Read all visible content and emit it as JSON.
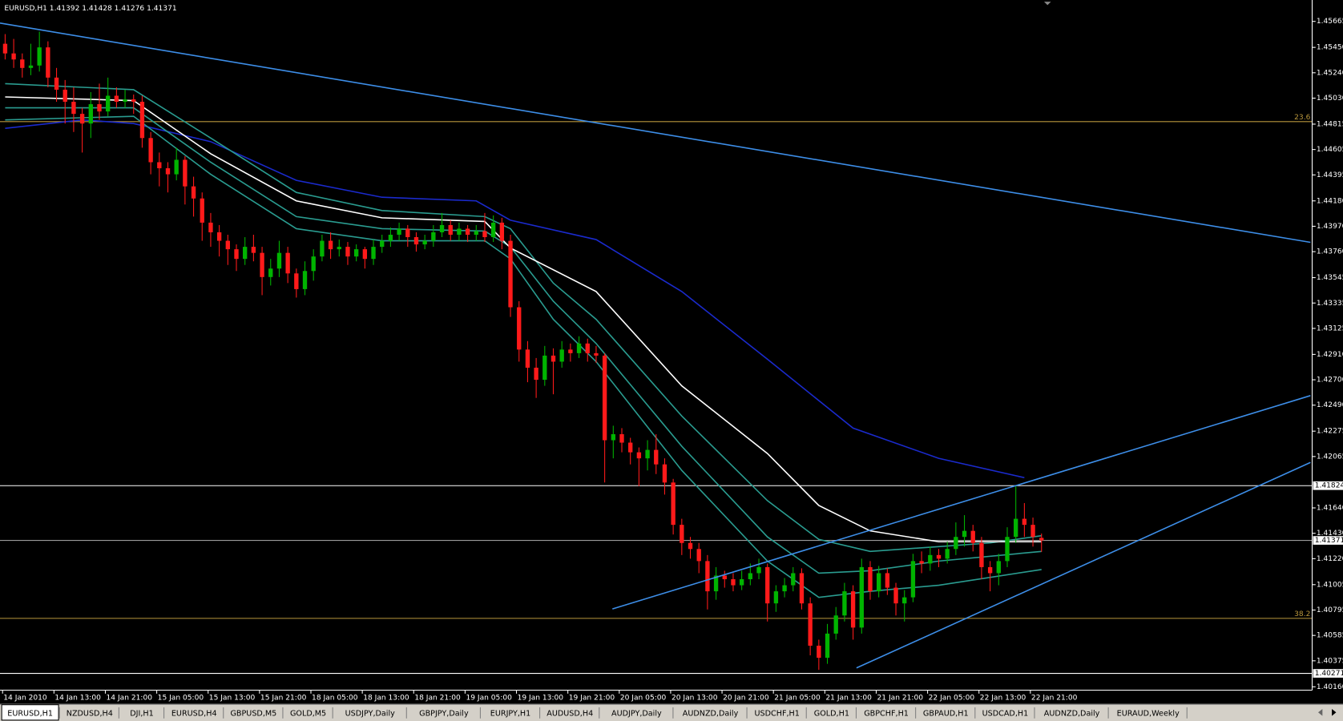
{
  "header": "EURUSD,H1  1.41392 1.41428 1.41276 1.41371",
  "chart_data": {
    "type": "candlestick",
    "categories": [
      "14 Jan 2010",
      null,
      null,
      null,
      null,
      null,
      "14 Jan 13:00",
      null,
      null,
      null,
      null,
      null,
      "14 Jan 21:00",
      null,
      null,
      null,
      null,
      null,
      "15 Jan 05:00",
      null,
      null,
      null,
      null,
      null,
      "15 Jan 13:00",
      null,
      null,
      null,
      null,
      null,
      "15 Jan 21:00",
      null,
      null,
      null,
      null,
      null,
      "18 Jan 05:00",
      null,
      null,
      null,
      null,
      null,
      "18 Jan 13:00",
      null,
      null,
      null,
      null,
      null,
      "18 Jan 21:00",
      null,
      null,
      null,
      null,
      null,
      "19 Jan 05:00",
      null,
      null,
      null,
      null,
      null,
      "19 Jan 13:00",
      null,
      null,
      null,
      null,
      null,
      "19 Jan 21:00",
      null,
      null,
      null,
      null,
      null,
      "20 Jan 05:00",
      null,
      null,
      null,
      null,
      null,
      "20 Jan 13:00",
      null,
      null,
      null,
      null,
      null,
      "20 Jan 21:00",
      null,
      null,
      null,
      null,
      null,
      "21 Jan 05:00",
      null,
      null,
      null,
      null,
      null,
      "21 Jan 13:00",
      null,
      null,
      null,
      null,
      null,
      "21 Jan 21:00",
      null,
      null,
      null,
      null,
      null,
      "22 Jan 05:00",
      null,
      null,
      null,
      null,
      null,
      "22 Jan 13:00",
      null,
      null,
      null,
      null,
      null,
      "22 Jan 21:00",
      null
    ],
    "candles": [
      [
        1.4548,
        1.4556,
        1.4535,
        1.454
      ],
      [
        1.454,
        1.4552,
        1.4528,
        1.4535
      ],
      [
        1.4535,
        1.454,
        1.452,
        1.4528
      ],
      [
        1.4528,
        1.4548,
        1.4522,
        1.453
      ],
      [
        1.453,
        1.4558,
        1.4525,
        1.4545
      ],
      [
        1.4545,
        1.455,
        1.4512,
        1.452
      ],
      [
        1.452,
        1.4528,
        1.45,
        1.451
      ],
      [
        1.451,
        1.4518,
        1.4482,
        1.45
      ],
      [
        1.45,
        1.4512,
        1.4475,
        1.449
      ],
      [
        1.449,
        1.4495,
        1.4458,
        1.4482
      ],
      [
        1.4482,
        1.4508,
        1.447,
        1.4498
      ],
      [
        1.4498,
        1.4515,
        1.4485,
        1.4492
      ],
      [
        1.4492,
        1.452,
        1.4488,
        1.4505
      ],
      [
        1.4505,
        1.4512,
        1.4495,
        1.45
      ],
      [
        1.45,
        1.451,
        1.4495,
        1.4502
      ],
      [
        1.4502,
        1.4506,
        1.449,
        1.45
      ],
      [
        1.45,
        1.4505,
        1.4462,
        1.447
      ],
      [
        1.447,
        1.4475,
        1.444,
        1.445
      ],
      [
        1.445,
        1.4458,
        1.443,
        1.4445
      ],
      [
        1.4445,
        1.445,
        1.4425,
        1.444
      ],
      [
        1.444,
        1.4462,
        1.4435,
        1.4452
      ],
      [
        1.4452,
        1.4455,
        1.4415,
        1.443
      ],
      [
        1.443,
        1.4438,
        1.4405,
        1.442
      ],
      [
        1.442,
        1.4425,
        1.4385,
        1.44
      ],
      [
        1.44,
        1.4408,
        1.438,
        1.4392
      ],
      [
        1.4392,
        1.4398,
        1.4372,
        1.4385
      ],
      [
        1.4385,
        1.439,
        1.4365,
        1.4378
      ],
      [
        1.4378,
        1.4382,
        1.436,
        1.437
      ],
      [
        1.437,
        1.4388,
        1.4365,
        1.438
      ],
      [
        1.438,
        1.439,
        1.4368,
        1.4375
      ],
      [
        1.4375,
        1.438,
        1.434,
        1.4355
      ],
      [
        1.4355,
        1.437,
        1.4348,
        1.4362
      ],
      [
        1.4362,
        1.4385,
        1.4355,
        1.4375
      ],
      [
        1.4375,
        1.438,
        1.435,
        1.4358
      ],
      [
        1.4358,
        1.4362,
        1.4338,
        1.4345
      ],
      [
        1.4345,
        1.4368,
        1.434,
        1.436
      ],
      [
        1.436,
        1.4378,
        1.4352,
        1.4372
      ],
      [
        1.4372,
        1.439,
        1.4368,
        1.4385
      ],
      [
        1.4385,
        1.4392,
        1.437,
        1.4378
      ],
      [
        1.4378,
        1.4386,
        1.4372,
        1.438
      ],
      [
        1.438,
        1.4384,
        1.4365,
        1.4372
      ],
      [
        1.4372,
        1.4382,
        1.4368,
        1.4378
      ],
      [
        1.4378,
        1.438,
        1.4362,
        1.437
      ],
      [
        1.437,
        1.4386,
        1.4365,
        1.438
      ],
      [
        1.438,
        1.439,
        1.4375,
        1.4385
      ],
      [
        1.4385,
        1.4396,
        1.438,
        1.439
      ],
      [
        1.439,
        1.44,
        1.4385,
        1.4395
      ],
      [
        1.4395,
        1.4398,
        1.438,
        1.4388
      ],
      [
        1.4388,
        1.4392,
        1.4376,
        1.4382
      ],
      [
        1.4382,
        1.439,
        1.4378,
        1.4385
      ],
      [
        1.4385,
        1.4398,
        1.438,
        1.4392
      ],
      [
        1.4392,
        1.4408,
        1.4388,
        1.4398
      ],
      [
        1.4398,
        1.4402,
        1.4385,
        1.439
      ],
      [
        1.439,
        1.44,
        1.4385,
        1.4395
      ],
      [
        1.4395,
        1.4398,
        1.4384,
        1.439
      ],
      [
        1.439,
        1.4398,
        1.4385,
        1.4393
      ],
      [
        1.4393,
        1.4408,
        1.4384,
        1.4388
      ],
      [
        1.4388,
        1.4406,
        1.4384,
        1.44
      ],
      [
        1.44,
        1.4404,
        1.4378,
        1.4385
      ],
      [
        1.4385,
        1.439,
        1.4322,
        1.433
      ],
      [
        1.433,
        1.4335,
        1.4285,
        1.4295
      ],
      [
        1.4295,
        1.4302,
        1.4268,
        1.428
      ],
      [
        1.428,
        1.4288,
        1.4255,
        1.427
      ],
      [
        1.427,
        1.4298,
        1.4265,
        1.429
      ],
      [
        1.429,
        1.4296,
        1.4258,
        1.4285
      ],
      [
        1.4285,
        1.4302,
        1.428,
        1.4295
      ],
      [
        1.4295,
        1.43,
        1.4285,
        1.4292
      ],
      [
        1.4292,
        1.4306,
        1.4288,
        1.43
      ],
      [
        1.43,
        1.4304,
        1.4285,
        1.4292
      ],
      [
        1.4292,
        1.4298,
        1.4284,
        1.429
      ],
      [
        1.429,
        1.4292,
        1.4185,
        1.422
      ],
      [
        1.422,
        1.4232,
        1.4205,
        1.4225
      ],
      [
        1.4225,
        1.423,
        1.421,
        1.4218
      ],
      [
        1.4218,
        1.4222,
        1.42,
        1.421
      ],
      [
        1.421,
        1.4214,
        1.4182,
        1.4205
      ],
      [
        1.4205,
        1.422,
        1.4195,
        1.4212
      ],
      [
        1.4212,
        1.4225,
        1.4192,
        1.42
      ],
      [
        1.42,
        1.4205,
        1.4175,
        1.4185
      ],
      [
        1.4185,
        1.4188,
        1.4142,
        1.415
      ],
      [
        1.415,
        1.4155,
        1.4125,
        1.4135
      ],
      [
        1.4135,
        1.414,
        1.4122,
        1.413
      ],
      [
        1.413,
        1.4135,
        1.411,
        1.412
      ],
      [
        1.412,
        1.4125,
        1.408,
        1.4095
      ],
      [
        1.4095,
        1.4115,
        1.4088,
        1.4108
      ],
      [
        1.4108,
        1.4112,
        1.4098,
        1.4105
      ],
      [
        1.4105,
        1.411,
        1.4095,
        1.41
      ],
      [
        1.41,
        1.4112,
        1.4096,
        1.4105
      ],
      [
        1.4105,
        1.4118,
        1.41,
        1.411
      ],
      [
        1.411,
        1.4122,
        1.4105,
        1.4115
      ],
      [
        1.4115,
        1.4118,
        1.407,
        1.4085
      ],
      [
        1.4085,
        1.41,
        1.4078,
        1.4095
      ],
      [
        1.4095,
        1.4106,
        1.409,
        1.41
      ],
      [
        1.41,
        1.4115,
        1.4095,
        1.411
      ],
      [
        1.411,
        1.4114,
        1.408,
        1.4085
      ],
      [
        1.4085,
        1.409,
        1.4042,
        1.405
      ],
      [
        1.405,
        1.4055,
        1.403,
        1.404
      ],
      [
        1.404,
        1.4068,
        1.4035,
        1.406
      ],
      [
        1.406,
        1.4082,
        1.4055,
        1.4075
      ],
      [
        1.4075,
        1.4102,
        1.407,
        1.4095
      ],
      [
        1.4095,
        1.41,
        1.4055,
        1.4065
      ],
      [
        1.4065,
        1.4122,
        1.406,
        1.4115
      ],
      [
        1.4115,
        1.412,
        1.4088,
        1.4095
      ],
      [
        1.4095,
        1.4116,
        1.409,
        1.411
      ],
      [
        1.411,
        1.4114,
        1.4092,
        1.4098
      ],
      [
        1.4098,
        1.4102,
        1.4075,
        1.4085
      ],
      [
        1.4085,
        1.4096,
        1.407,
        1.409
      ],
      [
        1.409,
        1.4126,
        1.4086,
        1.412
      ],
      [
        1.412,
        1.4128,
        1.411,
        1.4118
      ],
      [
        1.4118,
        1.4132,
        1.4112,
        1.4125
      ],
      [
        1.4125,
        1.413,
        1.4115,
        1.4122
      ],
      [
        1.4122,
        1.4136,
        1.4118,
        1.413
      ],
      [
        1.413,
        1.4152,
        1.4125,
        1.414
      ],
      [
        1.414,
        1.4158,
        1.4132,
        1.4145
      ],
      [
        1.4145,
        1.415,
        1.4128,
        1.4135
      ],
      [
        1.4135,
        1.414,
        1.4105,
        1.4115
      ],
      [
        1.4115,
        1.412,
        1.4095,
        1.411
      ],
      [
        1.411,
        1.4126,
        1.41,
        1.412
      ],
      [
        1.412,
        1.4148,
        1.4115,
        1.414
      ],
      [
        1.414,
        1.4182,
        1.4135,
        1.4155
      ],
      [
        1.4155,
        1.4168,
        1.414,
        1.415
      ],
      [
        1.415,
        1.4156,
        1.4132,
        1.414
      ],
      [
        1.41392,
        1.41428,
        1.41276,
        1.41371
      ]
    ],
    "up_color": "#00b400",
    "down_color": "#ff1a1a",
    "ylim": [
      1.40132,
      1.45842
    ],
    "yticks": [
      1.45665,
      {
        "value": 1.4545,
        "label": "1.45450"
      },
      {
        "value": 1.4524,
        "label": "1.45240"
      },
      {
        "value": 1.4503,
        "label": "1.45030"
      },
      1.44815,
      1.44605,
      1.44395,
      {
        "value": 1.4418,
        "label": "1.44180"
      },
      {
        "value": 1.4397,
        "label": "1.43970"
      },
      {
        "value": 1.4376,
        "label": "1.43760"
      },
      1.43545,
      1.43335,
      1.43125,
      {
        "value": 1.4291,
        "label": "1.42910"
      },
      {
        "value": 1.427,
        "label": "1.42700"
      },
      {
        "value": 1.4249,
        "label": "1.42490"
      },
      1.42275,
      1.42065,
      {
        "value": 1.4164,
        "label": "1.41640"
      },
      {
        "value": 1.4143,
        "label": "1.41430"
      },
      {
        "value": 1.4122,
        "label": "1.41220"
      },
      1.41005,
      1.40795,
      1.40585,
      1.40375,
      {
        "value": 1.4016,
        "label": "1.40160"
      }
    ],
    "overlays": [
      {
        "color": "#1a2acc",
        "points": [
          [
            0,
            1.4478
          ],
          [
            9,
            1.4485
          ],
          [
            15,
            1.4482
          ],
          [
            24,
            1.4467
          ],
          [
            34,
            1.4435
          ],
          [
            44,
            1.4421
          ],
          [
            55,
            1.4418
          ],
          [
            59,
            1.4402
          ],
          [
            69,
            1.4386
          ],
          [
            79,
            1.4343
          ],
          [
            89,
            1.4287
          ],
          [
            99,
            1.423
          ],
          [
            109,
            1.4205
          ],
          [
            119,
            1.4189
          ]
        ]
      },
      {
        "color": "#2a9c90",
        "points": [
          [
            0,
            1.4515
          ],
          [
            15,
            1.451
          ],
          [
            24,
            1.447
          ],
          [
            34,
            1.4425
          ],
          [
            44,
            1.441
          ],
          [
            56,
            1.4405
          ],
          [
            59,
            1.4395
          ],
          [
            64,
            1.435
          ],
          [
            69,
            1.432
          ],
          [
            79,
            1.424
          ],
          [
            89,
            1.417
          ],
          [
            95,
            1.4138
          ],
          [
            101,
            1.4128
          ],
          [
            109,
            1.4132
          ],
          [
            115,
            1.4135
          ],
          [
            121,
            1.4141
          ]
        ]
      },
      {
        "color": "#2a9c90",
        "points": [
          [
            0,
            1.4495
          ],
          [
            15,
            1.4495
          ],
          [
            24,
            1.445
          ],
          [
            34,
            1.4405
          ],
          [
            44,
            1.4395
          ],
          [
            56,
            1.4393
          ],
          [
            59,
            1.438
          ],
          [
            64,
            1.4335
          ],
          [
            69,
            1.43
          ],
          [
            79,
            1.4215
          ],
          [
            89,
            1.414
          ],
          [
            95,
            1.411
          ],
          [
            101,
            1.4112
          ],
          [
            109,
            1.412
          ],
          [
            121,
            1.4128
          ]
        ]
      },
      {
        "color": "#2a9c90",
        "points": [
          [
            0,
            1.4485
          ],
          [
            15,
            1.4488
          ],
          [
            24,
            1.444
          ],
          [
            34,
            1.4395
          ],
          [
            44,
            1.4385
          ],
          [
            56,
            1.4385
          ],
          [
            59,
            1.437
          ],
          [
            64,
            1.432
          ],
          [
            69,
            1.4285
          ],
          [
            79,
            1.4195
          ],
          [
            89,
            1.412
          ],
          [
            95,
            1.409
          ],
          [
            101,
            1.4095
          ],
          [
            109,
            1.41
          ],
          [
            121,
            1.4113
          ]
        ]
      },
      {
        "color": "#ffffff",
        "points": [
          [
            0,
            1.4504
          ],
          [
            15,
            1.4501
          ],
          [
            24,
            1.4457
          ],
          [
            34,
            1.4418
          ],
          [
            44,
            1.4404
          ],
          [
            56,
            1.4401
          ],
          [
            59,
            1.4379
          ],
          [
            69,
            1.4343
          ],
          [
            79,
            1.4265
          ],
          [
            89,
            1.4209
          ],
          [
            95,
            1.4166
          ],
          [
            101,
            1.4145
          ],
          [
            109,
            1.4136
          ],
          [
            121,
            1.4136
          ]
        ]
      }
    ],
    "trendlines": [
      {
        "color": "#3d8ee8",
        "points": [
          [
            -0.6,
            1.45651
          ],
          [
            152.4,
            1.43837
          ]
        ]
      },
      {
        "color": "#3d8ee8",
        "points": [
          [
            70.9,
            1.40804
          ],
          [
            152.4,
            1.42569
          ]
        ]
      },
      {
        "color": "#3d8ee8",
        "points": [
          [
            99.4,
            1.40316
          ],
          [
            152.4,
            1.42016
          ]
        ]
      }
    ],
    "price_lines": [
      {
        "value": 1.41824,
        "label": "1.41824",
        "color": "#ffffff"
      },
      {
        "value": 1.41371,
        "label": "1.41371",
        "color": "#9a9a9a"
      },
      {
        "value": 1.40271,
        "label": "1.40271",
        "color": "#ffffff"
      }
    ],
    "fib_levels": [
      {
        "value": 1.44836,
        "label": "23.6",
        "color": "#b8963c"
      },
      {
        "value": 1.40726,
        "label": "38.2",
        "color": "#b8963c"
      }
    ]
  },
  "tabs": [
    "EURUSD,H1",
    "NZDUSD,H4",
    "DJI,H1",
    "EURUSD,H4",
    "GBPUSD,M5",
    "GOLD,M5",
    "USDJPY,Daily",
    "GBPJPY,Daily",
    "EURJPY,H1",
    "AUDUSD,H4",
    "AUDJPY,Daily",
    "AUDNZD,Daily",
    "USDCHF,H1",
    "GOLD,H1",
    "GBPCHF,H1",
    "GBPAUD,H1",
    "USDCAD,H1",
    "AUDNZD,Daily",
    "EURAUD,Weekly"
  ]
}
